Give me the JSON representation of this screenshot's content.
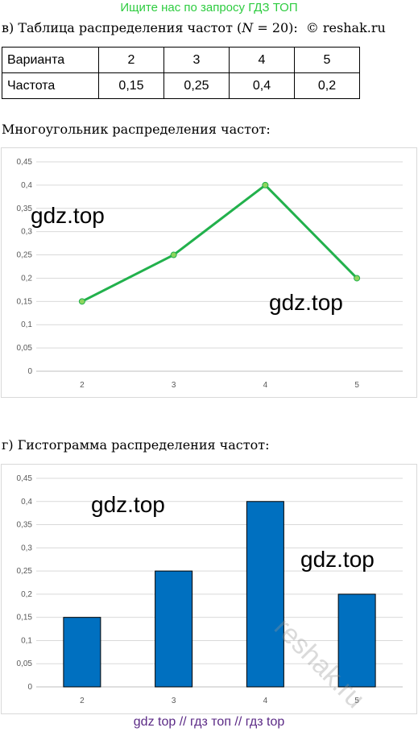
{
  "header_text": "Ищите нас по запросу ГДЗ ТОП",
  "section_v": {
    "title": "в) Таблица распределения частот (𝑁 = 20):",
    "copyright": "© reshak.ru"
  },
  "table": {
    "rows": [
      {
        "head": "Варианта",
        "cells": [
          "2",
          "3",
          "4",
          "5"
        ]
      },
      {
        "head": "Частота",
        "cells": [
          "0,15",
          "0,25",
          "0,4",
          "0,2"
        ]
      }
    ]
  },
  "polygon_title": "Многоугольник распределения частот:",
  "histogram_title": "г) Гистограмма распределения частот:",
  "watermark": "gdz.top",
  "reshak_watermark": "reshak.ru",
  "footer": "gdz top  //  гдз топ  //  гдз top",
  "colors": {
    "line": "#22b14c",
    "marker": "#8fd55e",
    "bar": "#0070c0",
    "header": "#2ecc40"
  },
  "chart_data": [
    {
      "type": "line",
      "x": [
        2,
        3,
        4,
        5
      ],
      "values": [
        0.15,
        0.25,
        0.4,
        0.2
      ],
      "ylim": [
        0,
        0.45
      ],
      "yticks": [
        "0",
        "0,05",
        "0,1",
        "0,15",
        "0,2",
        "0,25",
        "0,3",
        "0,35",
        "0,4",
        "0,45"
      ],
      "xticks": [
        "2",
        "3",
        "4",
        "5"
      ],
      "grid": true
    },
    {
      "type": "bar",
      "categories": [
        "2",
        "3",
        "4",
        "5"
      ],
      "values": [
        0.15,
        0.25,
        0.4,
        0.2
      ],
      "ylim": [
        0,
        0.45
      ],
      "yticks": [
        "0",
        "0,05",
        "0,1",
        "0,15",
        "0,2",
        "0,25",
        "0,3",
        "0,35",
        "0,4",
        "0,45"
      ],
      "grid": true
    }
  ]
}
